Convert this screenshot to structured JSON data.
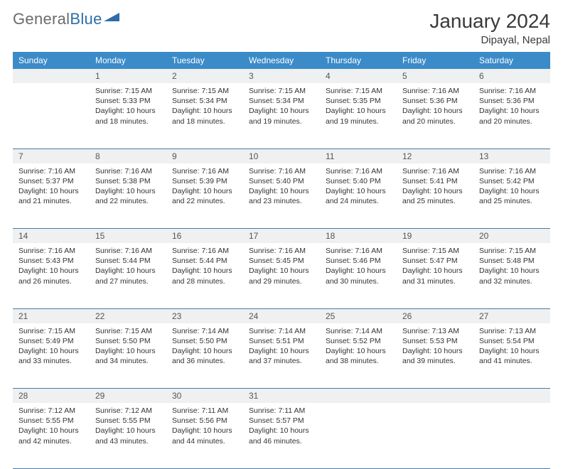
{
  "brand": {
    "word1": "General",
    "word2": "Blue",
    "logo_color": "#2e6ea8",
    "word1_color": "#6b6b6b"
  },
  "title": "January 2024",
  "location": "Dipayal, Nepal",
  "colors": {
    "header_bg": "#3b8bc8",
    "header_fg": "#ffffff",
    "daynum_bg": "#eef0f1",
    "daynum_fg": "#555555",
    "cell_text": "#333333",
    "rule": "#4a7ba8",
    "page_bg": "#ffffff"
  },
  "fonts": {
    "title_pt": 28,
    "location_pt": 15,
    "weekday_pt": 12,
    "daynum_pt": 12,
    "cell_pt": 10.5
  },
  "weekdays": [
    "Sunday",
    "Monday",
    "Tuesday",
    "Wednesday",
    "Thursday",
    "Friday",
    "Saturday"
  ],
  "weeks": [
    [
      null,
      {
        "n": "1",
        "sr": "7:15 AM",
        "ss": "5:33 PM",
        "dl": "10 hours and 18 minutes."
      },
      {
        "n": "2",
        "sr": "7:15 AM",
        "ss": "5:34 PM",
        "dl": "10 hours and 18 minutes."
      },
      {
        "n": "3",
        "sr": "7:15 AM",
        "ss": "5:34 PM",
        "dl": "10 hours and 19 minutes."
      },
      {
        "n": "4",
        "sr": "7:15 AM",
        "ss": "5:35 PM",
        "dl": "10 hours and 19 minutes."
      },
      {
        "n": "5",
        "sr": "7:16 AM",
        "ss": "5:36 PM",
        "dl": "10 hours and 20 minutes."
      },
      {
        "n": "6",
        "sr": "7:16 AM",
        "ss": "5:36 PM",
        "dl": "10 hours and 20 minutes."
      }
    ],
    [
      {
        "n": "7",
        "sr": "7:16 AM",
        "ss": "5:37 PM",
        "dl": "10 hours and 21 minutes."
      },
      {
        "n": "8",
        "sr": "7:16 AM",
        "ss": "5:38 PM",
        "dl": "10 hours and 22 minutes."
      },
      {
        "n": "9",
        "sr": "7:16 AM",
        "ss": "5:39 PM",
        "dl": "10 hours and 22 minutes."
      },
      {
        "n": "10",
        "sr": "7:16 AM",
        "ss": "5:40 PM",
        "dl": "10 hours and 23 minutes."
      },
      {
        "n": "11",
        "sr": "7:16 AM",
        "ss": "5:40 PM",
        "dl": "10 hours and 24 minutes."
      },
      {
        "n": "12",
        "sr": "7:16 AM",
        "ss": "5:41 PM",
        "dl": "10 hours and 25 minutes."
      },
      {
        "n": "13",
        "sr": "7:16 AM",
        "ss": "5:42 PM",
        "dl": "10 hours and 25 minutes."
      }
    ],
    [
      {
        "n": "14",
        "sr": "7:16 AM",
        "ss": "5:43 PM",
        "dl": "10 hours and 26 minutes."
      },
      {
        "n": "15",
        "sr": "7:16 AM",
        "ss": "5:44 PM",
        "dl": "10 hours and 27 minutes."
      },
      {
        "n": "16",
        "sr": "7:16 AM",
        "ss": "5:44 PM",
        "dl": "10 hours and 28 minutes."
      },
      {
        "n": "17",
        "sr": "7:16 AM",
        "ss": "5:45 PM",
        "dl": "10 hours and 29 minutes."
      },
      {
        "n": "18",
        "sr": "7:16 AM",
        "ss": "5:46 PM",
        "dl": "10 hours and 30 minutes."
      },
      {
        "n": "19",
        "sr": "7:15 AM",
        "ss": "5:47 PM",
        "dl": "10 hours and 31 minutes."
      },
      {
        "n": "20",
        "sr": "7:15 AM",
        "ss": "5:48 PM",
        "dl": "10 hours and 32 minutes."
      }
    ],
    [
      {
        "n": "21",
        "sr": "7:15 AM",
        "ss": "5:49 PM",
        "dl": "10 hours and 33 minutes."
      },
      {
        "n": "22",
        "sr": "7:15 AM",
        "ss": "5:50 PM",
        "dl": "10 hours and 34 minutes."
      },
      {
        "n": "23",
        "sr": "7:14 AM",
        "ss": "5:50 PM",
        "dl": "10 hours and 36 minutes."
      },
      {
        "n": "24",
        "sr": "7:14 AM",
        "ss": "5:51 PM",
        "dl": "10 hours and 37 minutes."
      },
      {
        "n": "25",
        "sr": "7:14 AM",
        "ss": "5:52 PM",
        "dl": "10 hours and 38 minutes."
      },
      {
        "n": "26",
        "sr": "7:13 AM",
        "ss": "5:53 PM",
        "dl": "10 hours and 39 minutes."
      },
      {
        "n": "27",
        "sr": "7:13 AM",
        "ss": "5:54 PM",
        "dl": "10 hours and 41 minutes."
      }
    ],
    [
      {
        "n": "28",
        "sr": "7:12 AM",
        "ss": "5:55 PM",
        "dl": "10 hours and 42 minutes."
      },
      {
        "n": "29",
        "sr": "7:12 AM",
        "ss": "5:55 PM",
        "dl": "10 hours and 43 minutes."
      },
      {
        "n": "30",
        "sr": "7:11 AM",
        "ss": "5:56 PM",
        "dl": "10 hours and 44 minutes."
      },
      {
        "n": "31",
        "sr": "7:11 AM",
        "ss": "5:57 PM",
        "dl": "10 hours and 46 minutes."
      },
      null,
      null,
      null
    ]
  ],
  "labels": {
    "sunrise": "Sunrise:",
    "sunset": "Sunset:",
    "daylight": "Daylight:"
  }
}
